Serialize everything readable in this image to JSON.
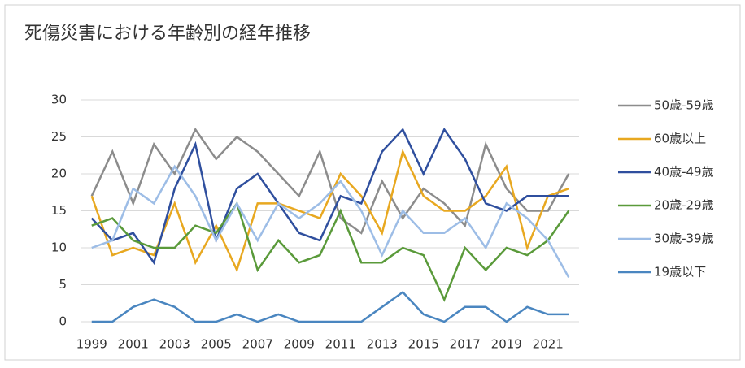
{
  "chart_data": {
    "type": "line",
    "title": "死傷災害における年齢別の経年推移",
    "categories": [
      "1999",
      null,
      "2001",
      null,
      "2003",
      null,
      "2005",
      null,
      "2007",
      null,
      "2009",
      null,
      "2011",
      null,
      "2013",
      null,
      "2015",
      null,
      "2017",
      null,
      "2019",
      null,
      "2021",
      null
    ],
    "ylim": [
      0,
      30
    ],
    "yticks": [
      0,
      5,
      10,
      15,
      20,
      25,
      30
    ],
    "grid": true,
    "legend": "right",
    "series": [
      {
        "name": "50歳-59歳",
        "color": "#8c8c8c",
        "values": [
          17,
          23,
          16,
          24,
          20,
          26,
          22,
          25,
          23,
          20,
          17,
          23,
          14,
          12,
          19,
          14,
          18,
          16,
          13,
          24,
          18,
          15,
          15,
          20
        ]
      },
      {
        "name": "60歳以上",
        "color": "#e8a820",
        "values": [
          17,
          9,
          10,
          9,
          16,
          8,
          13,
          7,
          16,
          16,
          15,
          14,
          20,
          17,
          12,
          23,
          17,
          15,
          15,
          17,
          21,
          10,
          17,
          18
        ]
      },
      {
        "name": "40歳-49歳",
        "color": "#2f4f9e",
        "values": [
          14,
          11,
          12,
          8,
          18,
          24,
          11,
          18,
          20,
          16,
          12,
          11,
          17,
          16,
          23,
          26,
          20,
          26,
          22,
          16,
          15,
          17,
          17,
          17
        ]
      },
      {
        "name": "20歳-29歳",
        "color": "#5a9a3a",
        "values": [
          13,
          14,
          11,
          10,
          10,
          13,
          12,
          16,
          7,
          11,
          8,
          9,
          15,
          8,
          8,
          10,
          9,
          3,
          10,
          7,
          10,
          9,
          11,
          15
        ]
      },
      {
        "name": "30歳-39歳",
        "color": "#9dbde6",
        "values": [
          10,
          11,
          18,
          16,
          21,
          17,
          11,
          16,
          11,
          16,
          14,
          16,
          19,
          15,
          9,
          15,
          12,
          12,
          14,
          10,
          16,
          14,
          11,
          6
        ]
      },
      {
        "name": "19歳以下",
        "color": "#4a86c0",
        "values": [
          0,
          0,
          2,
          3,
          2,
          0,
          0,
          1,
          0,
          1,
          0,
          0,
          0,
          0,
          2,
          4,
          1,
          0,
          2,
          2,
          0,
          2,
          1,
          1
        ]
      }
    ]
  }
}
